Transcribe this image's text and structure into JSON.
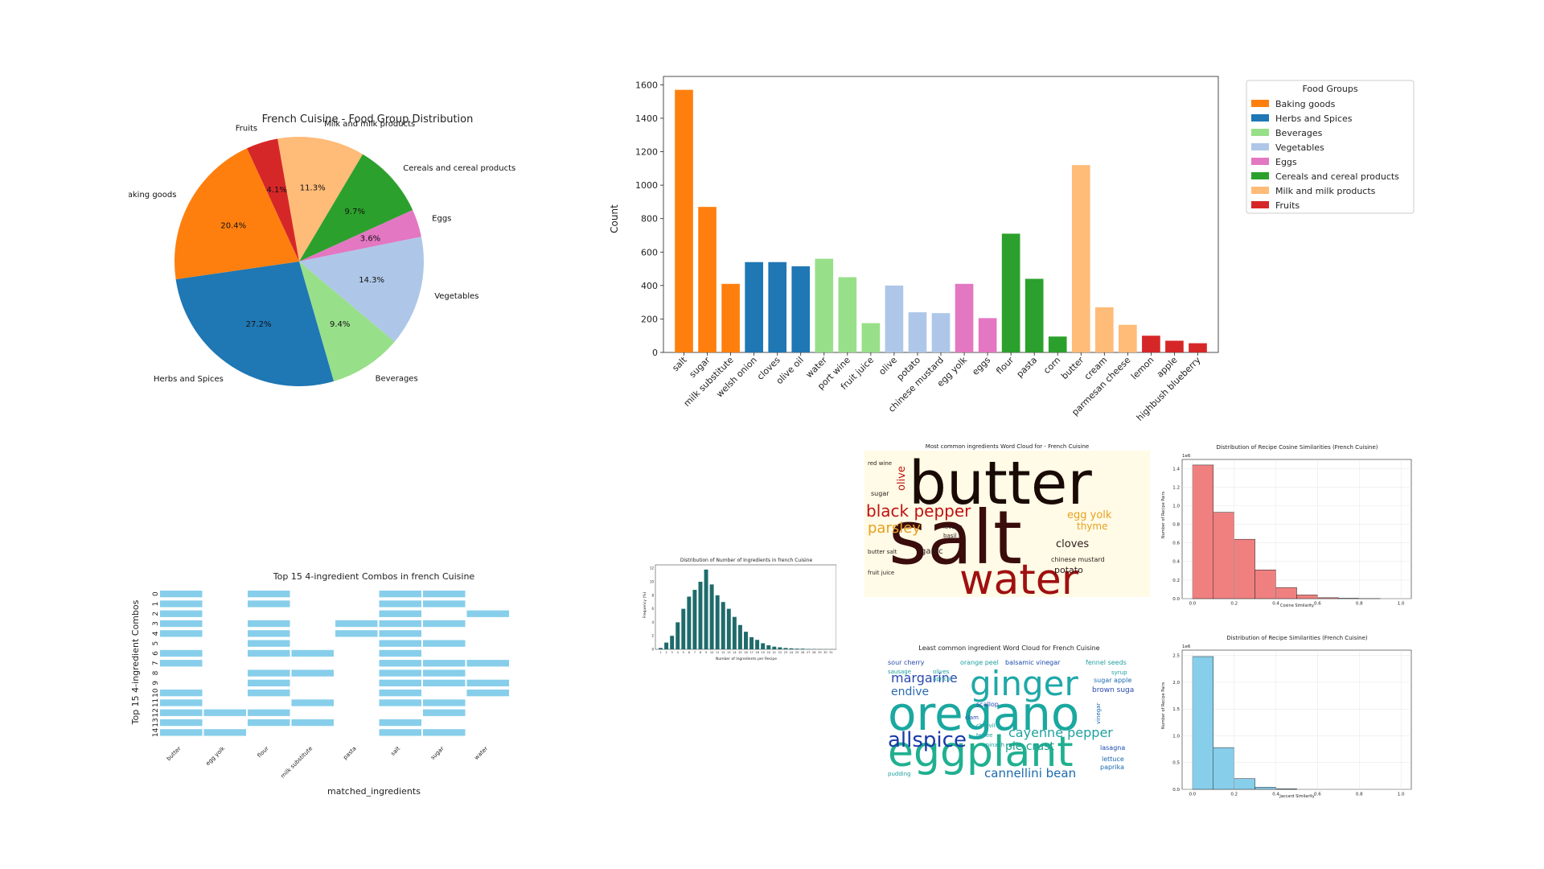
{
  "pie": {
    "title": "French Cuisine - Food Group Distribution",
    "chart_data": {
      "type": "pie",
      "slices": [
        {
          "label": "Milk and milk products",
          "value": 11.3,
          "pct": "11.3%",
          "color": "#ffbb78"
        },
        {
          "label": "Cereals and cereal products",
          "value": 9.7,
          "pct": "9.7%",
          "color": "#2ca02c"
        },
        {
          "label": "Eggs",
          "value": 3.6,
          "pct": "3.6%",
          "color": "#e377c2"
        },
        {
          "label": "Vegetables",
          "value": 14.3,
          "pct": "14.3%",
          "color": "#aec7e8"
        },
        {
          "label": "Beverages",
          "value": 9.4,
          "pct": "9.4%",
          "color": "#98df8a"
        },
        {
          "label": "Herbs and Spices",
          "value": 27.2,
          "pct": "27.2%",
          "color": "#1f77b4"
        },
        {
          "label": "Baking goods",
          "value": 20.4,
          "pct": "20.4%",
          "color": "#ff7f0e"
        },
        {
          "label": "Fruits",
          "value": 4.1,
          "pct": "4.1%",
          "color": "#d62728"
        }
      ]
    }
  },
  "bar": {
    "chart_data": {
      "type": "bar",
      "ylabel": "Count",
      "ylim": [
        0,
        1650
      ],
      "yticks": [
        0,
        200,
        400,
        600,
        800,
        1000,
        1200,
        1400,
        1600
      ],
      "bars": [
        {
          "label": "salt",
          "value": 1570,
          "group": "Baking goods"
        },
        {
          "label": "sugar",
          "value": 870,
          "group": "Baking goods"
        },
        {
          "label": "milk substitute",
          "value": 410,
          "group": "Baking goods"
        },
        {
          "label": "welsh onion",
          "value": 540,
          "group": "Herbs and Spices"
        },
        {
          "label": "cloves",
          "value": 540,
          "group": "Herbs and Spices"
        },
        {
          "label": "olive oil",
          "value": 515,
          "group": "Herbs and Spices"
        },
        {
          "label": "water",
          "value": 560,
          "group": "Beverages"
        },
        {
          "label": "port wine",
          "value": 450,
          "group": "Beverages"
        },
        {
          "label": "fruit juice",
          "value": 175,
          "group": "Beverages"
        },
        {
          "label": "olive",
          "value": 400,
          "group": "Vegetables"
        },
        {
          "label": "potato",
          "value": 240,
          "group": "Vegetables"
        },
        {
          "label": "chinese mustard",
          "value": 235,
          "group": "Vegetables"
        },
        {
          "label": "egg yolk",
          "value": 410,
          "group": "Eggs"
        },
        {
          "label": "eggs",
          "value": 205,
          "group": "Eggs"
        },
        {
          "label": "flour",
          "value": 710,
          "group": "Cereals and cereal products"
        },
        {
          "label": "pasta",
          "value": 440,
          "group": "Cereals and cereal products"
        },
        {
          "label": "corn",
          "value": 95,
          "group": "Cereals and cereal products"
        },
        {
          "label": "butter",
          "value": 1120,
          "group": "Milk and milk products"
        },
        {
          "label": "cream",
          "value": 270,
          "group": "Milk and milk products"
        },
        {
          "label": "parmesan cheese",
          "value": 165,
          "group": "Milk and milk products"
        },
        {
          "label": "lemon",
          "value": 100,
          "group": "Fruits"
        },
        {
          "label": "apple",
          "value": 70,
          "group": "Fruits"
        },
        {
          "label": "highbush blueberry",
          "value": 55,
          "group": "Fruits"
        }
      ],
      "legend": {
        "title": "Food Groups",
        "placement": "right",
        "entries": [
          {
            "label": "Baking goods",
            "color": "#ff7f0e"
          },
          {
            "label": "Herbs and Spices",
            "color": "#1f77b4"
          },
          {
            "label": "Beverages",
            "color": "#98df8a"
          },
          {
            "label": "Vegetables",
            "color": "#aec7e8"
          },
          {
            "label": "Eggs",
            "color": "#e377c2"
          },
          {
            "label": "Cereals and cereal products",
            "color": "#2ca02c"
          },
          {
            "label": "Milk and milk products",
            "color": "#ffbb78"
          },
          {
            "label": "Fruits",
            "color": "#d62728"
          }
        ]
      }
    }
  },
  "combos": {
    "title": "Top 15 4-ingredient Combos in french Cuisine",
    "chart_data": {
      "type": "heatmap",
      "xlabel": "matched_ingredients",
      "ylabel": "Top 15 4-ingredient Combos",
      "columns": [
        "butter",
        "egg yolk",
        "flour",
        "milk substitute",
        "pasta",
        "salt",
        "sugar",
        "water"
      ],
      "rows": [
        "0",
        "1",
        "2",
        "3",
        "4",
        "5",
        "6",
        "7",
        "8",
        "9",
        "10",
        "11",
        "12",
        "13",
        "14"
      ],
      "matrix": [
        [
          1,
          0,
          1,
          0,
          0,
          1,
          1,
          0
        ],
        [
          1,
          0,
          1,
          0,
          0,
          1,
          1,
          0
        ],
        [
          1,
          0,
          0,
          0,
          0,
          1,
          0,
          1
        ],
        [
          1,
          0,
          1,
          0,
          1,
          1,
          1,
          0
        ],
        [
          1,
          0,
          1,
          0,
          1,
          1,
          0,
          0
        ],
        [
          0,
          0,
          1,
          0,
          0,
          1,
          1,
          0
        ],
        [
          1,
          0,
          1,
          1,
          0,
          1,
          0,
          0
        ],
        [
          1,
          0,
          0,
          0,
          0,
          1,
          1,
          1
        ],
        [
          0,
          0,
          1,
          1,
          0,
          1,
          1,
          0
        ],
        [
          0,
          0,
          1,
          0,
          0,
          1,
          1,
          1
        ],
        [
          1,
          0,
          1,
          0,
          0,
          1,
          0,
          1
        ],
        [
          1,
          0,
          0,
          1,
          0,
          1,
          1,
          0
        ],
        [
          1,
          1,
          1,
          0,
          0,
          0,
          1,
          0
        ],
        [
          1,
          0,
          1,
          1,
          0,
          1,
          0,
          0
        ],
        [
          1,
          1,
          0,
          0,
          0,
          1,
          1,
          0
        ]
      ],
      "color": "#87ceeb"
    }
  },
  "hist_ingredients": {
    "title": "Distribution of Number of Ingredients in french Cuisine",
    "chart_data": {
      "type": "bar",
      "xlabel": "Number of Ingredients per Recipe",
      "ylabel": "Frequency (%)",
      "ylim": [
        0,
        12.5
      ],
      "yticks": [
        0,
        2,
        4,
        6,
        8,
        10,
        12
      ],
      "categories": [
        "1",
        "2",
        "3",
        "4",
        "5",
        "6",
        "7",
        "8",
        "9",
        "10",
        "11",
        "12",
        "13",
        "14",
        "15",
        "16",
        "17",
        "18",
        "19",
        "20",
        "21",
        "22",
        "23",
        "24",
        "25",
        "26",
        "27",
        "28",
        "29",
        "30",
        "31"
      ],
      "values": [
        0.2,
        1.0,
        2.0,
        4.0,
        6.0,
        7.8,
        8.8,
        10.0,
        11.8,
        9.6,
        8.0,
        7.0,
        6.0,
        4.8,
        3.6,
        2.6,
        1.8,
        1.4,
        0.9,
        0.6,
        0.4,
        0.3,
        0.2,
        0.15,
        0.1,
        0.1,
        0.05,
        0.05,
        0.03,
        0.02,
        0.02
      ],
      "color": "#1f6b6b"
    }
  },
  "wordcloud_common": {
    "title": "Most common ingredients Word Cloud for - French Cuisine",
    "words": [
      {
        "text": "butter",
        "color": "#1a0a05",
        "size": 74
      },
      {
        "text": "salt",
        "color": "#3a0c0c",
        "size": 92
      },
      {
        "text": "water",
        "color": "#a01010",
        "size": 52
      },
      {
        "text": "black pepper",
        "color": "#c01010",
        "size": 20
      },
      {
        "text": "parsley",
        "color": "#e8a020",
        "size": 18
      },
      {
        "text": "cloves",
        "color": "#2a1a1a",
        "size": 13
      },
      {
        "text": "potato",
        "color": "#2a1a1a",
        "size": 11
      },
      {
        "text": "garlic",
        "color": "#2a1a1a",
        "size": 10
      },
      {
        "text": "thyme",
        "color": "#e8a020",
        "size": 12
      },
      {
        "text": "egg yolk",
        "color": "#e8a020",
        "size": 13
      },
      {
        "text": "olive",
        "color": "#c01010",
        "size": 13
      },
      {
        "text": "sugar",
        "color": "#2a1a1a",
        "size": 8
      },
      {
        "text": "chinese mustard",
        "color": "#2a1a1a",
        "size": 8
      },
      {
        "text": "lovage",
        "color": "#2a1a1a",
        "size": 7
      },
      {
        "text": "basil",
        "color": "#2a1a1a",
        "size": 7
      },
      {
        "text": "butter salt",
        "color": "#2a1a1a",
        "size": 7
      },
      {
        "text": "fruit juice",
        "color": "#2a1a1a",
        "size": 7
      },
      {
        "text": "red wine",
        "color": "#2a1a1a",
        "size": 7
      }
    ]
  },
  "hist_cosine": {
    "title": "Distribution of Recipe Cosine Similarities (French Cuisine)",
    "chart_data": {
      "type": "bar",
      "xlabel": "Cosine Similarity",
      "ylabel": "Number of Recipe Pairs",
      "scale_note": "1e6",
      "ylim": [
        0,
        1.5
      ],
      "yticks": [
        0.0,
        0.2,
        0.4,
        0.6,
        0.8,
        1.0,
        1.2,
        1.4
      ],
      "xticks": [
        0.0,
        0.2,
        0.4,
        0.6,
        0.8,
        1.0
      ],
      "bin_edges": [
        0.0,
        0.1,
        0.2,
        0.3,
        0.4,
        0.5,
        0.6,
        0.7,
        0.8,
        0.9,
        1.0
      ],
      "values": [
        1.44,
        0.93,
        0.64,
        0.31,
        0.12,
        0.04,
        0.01,
        0.004,
        0.001,
        0.0
      ],
      "color": "#f08080"
    }
  },
  "wordcloud_least": {
    "title": "Least common ingredient Word Cloud for French Cuisine",
    "words": [
      {
        "text": "oregano",
        "color": "#1aa8a0",
        "size": 58
      },
      {
        "text": "eggplant",
        "color": "#20b090",
        "size": 52
      },
      {
        "text": "ginger",
        "color": "#20a8a8",
        "size": 42
      },
      {
        "text": "allspice",
        "color": "#1a3aa8",
        "size": 26
      },
      {
        "text": "margarine",
        "color": "#2a4ab0",
        "size": 16
      },
      {
        "text": "cayenne pepper",
        "color": "#20a0a0",
        "size": 16
      },
      {
        "text": "cannellini bean",
        "color": "#1a6ab0",
        "size": 15
      },
      {
        "text": "endive",
        "color": "#2a6ab0",
        "size": 14
      },
      {
        "text": "pie crust",
        "color": "#20a090",
        "size": 14
      },
      {
        "text": "sour cherry",
        "color": "#2a4ab0",
        "size": 8
      },
      {
        "text": "orange peel",
        "color": "#20a0a0",
        "size": 8
      },
      {
        "text": "balsamic vinegar",
        "color": "#1a4ab0",
        "size": 8
      },
      {
        "text": "fennel seeds",
        "color": "#20a0a0",
        "size": 8
      },
      {
        "text": "brown sugar",
        "color": "#2a4ab0",
        "size": 9
      },
      {
        "text": "sugar apple",
        "color": "#1a6ab0",
        "size": 8
      },
      {
        "text": "lasagna",
        "color": "#1a4ab0",
        "size": 8
      },
      {
        "text": "lettuce",
        "color": "#1a6ab0",
        "size": 8
      },
      {
        "text": "paprika",
        "color": "#1a6ab0",
        "size": 8
      },
      {
        "text": "scallop",
        "color": "#2a4ab0",
        "size": 8
      },
      {
        "text": "sausage",
        "color": "#20a0a0",
        "size": 7
      },
      {
        "text": "olives",
        "color": "#20a0a0",
        "size": 7
      },
      {
        "text": "apricot",
        "color": "#20a0a0",
        "size": 7
      },
      {
        "text": "chervil",
        "color": "#20a0a0",
        "size": 7
      },
      {
        "text": "clam",
        "color": "#2a4ab0",
        "size": 7
      },
      {
        "text": "toffee",
        "color": "#20a0a0",
        "size": 7
      },
      {
        "text": "spinach",
        "color": "#20a0a0",
        "size": 7
      },
      {
        "text": "pudding",
        "color": "#20a0a0",
        "size": 7
      },
      {
        "text": "vinegar",
        "color": "#1a6ab0",
        "size": 7
      },
      {
        "text": "syrup",
        "color": "#20a0a0",
        "size": 7
      }
    ]
  },
  "hist_jaccard": {
    "title": "Distribution of Recipe Similarities (French Cuisine)",
    "chart_data": {
      "type": "bar",
      "xlabel": "Jaccard Similarity",
      "ylabel": "Number of Recipe Pairs",
      "scale_note": "1e6",
      "ylim": [
        0,
        2.6
      ],
      "yticks": [
        0.0,
        0.5,
        1.0,
        1.5,
        2.0,
        2.5
      ],
      "xticks": [
        0.0,
        0.2,
        0.4,
        0.6,
        0.8,
        1.0
      ],
      "bin_edges": [
        0.0,
        0.1,
        0.2,
        0.3,
        0.4,
        0.5,
        0.6,
        0.7,
        0.8,
        0.9,
        1.0
      ],
      "values": [
        2.48,
        0.78,
        0.2,
        0.04,
        0.01,
        0.0,
        0.0,
        0.0,
        0.0,
        0.0
      ],
      "color": "#87ceeb"
    }
  }
}
